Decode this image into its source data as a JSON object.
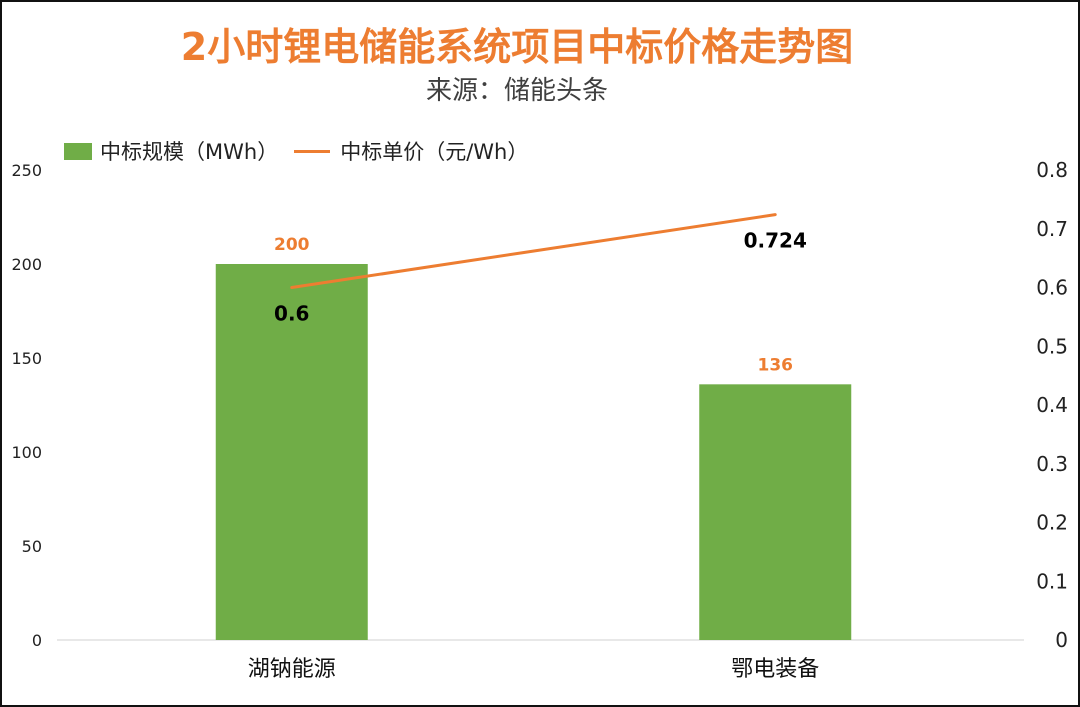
{
  "colors": {
    "bar": "#70AD47",
    "line": "#ED7D31",
    "title": "#ED7D31",
    "bar_label": "#ED7D31"
  },
  "chart_data": {
    "type": "bar",
    "title": "2小时锂电储能系统项目中标价格走势图",
    "subtitle": "来源：储能头条",
    "categories": [
      "湖钠能源",
      "鄂电装备"
    ],
    "series": [
      {
        "name": "中标规模（MWh）",
        "type": "bar",
        "axis": "left",
        "values": [
          200,
          136
        ],
        "labels": [
          "200",
          "136"
        ]
      },
      {
        "name": "中标单价（元/Wh）",
        "type": "line",
        "axis": "right",
        "values": [
          0.6,
          0.724
        ],
        "labels": [
          "0.6",
          "0.724"
        ]
      }
    ],
    "y_left": {
      "lim": [
        0,
        250
      ],
      "ticks": [
        "0",
        "50",
        "100",
        "150",
        "200",
        "250"
      ]
    },
    "y_right": {
      "lim": [
        0,
        0.8
      ],
      "ticks": [
        "0",
        "0.1",
        "0.2",
        "0.3",
        "0.4",
        "0.5",
        "0.6",
        "0.7",
        "0.8"
      ]
    },
    "legend_position": "top-left",
    "grid": false
  }
}
